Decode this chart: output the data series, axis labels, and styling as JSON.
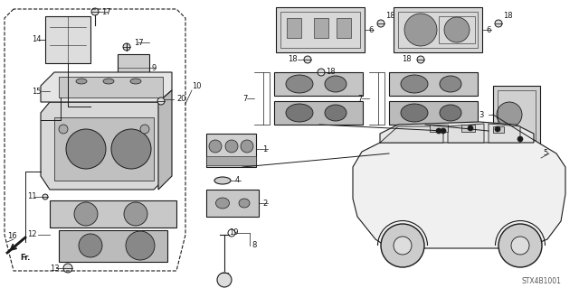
{
  "background_color": "#ffffff",
  "line_color": "#1a1a1a",
  "gray_fill": "#c8c8c8",
  "light_fill": "#e8e8e8",
  "med_fill": "#aaaaaa",
  "watermark": "STX4B1001",
  "fig_width": 6.4,
  "fig_height": 3.19,
  "dpi": 100
}
